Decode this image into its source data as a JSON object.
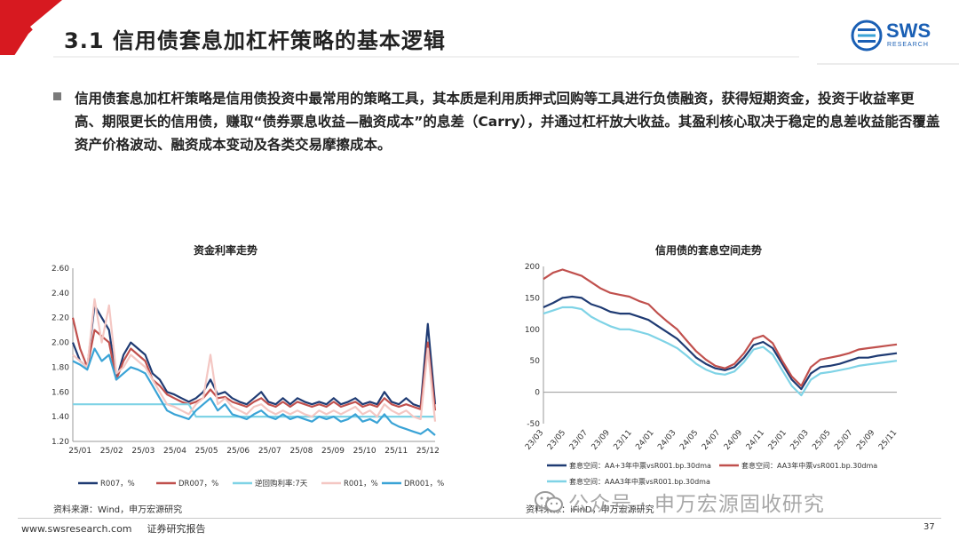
{
  "slide": {
    "title": "3.1 信用债套息加杠杆策略的基本逻辑",
    "logo_text": "SWS",
    "logo_sub": "RESEARCH",
    "bullet": "信用债套息加杠杆策略是信用债投资中最常用的策略工具，其本质是利用质押式回购等工具进行负债融资，获得短期资金，投资于收益率更高、期限更长的信用债，赚取“债券票息收益—融资成本”的息差（Carry），并通过杠杆放大收益。其盈利核心取决于稳定的息差收益能否覆盖资产价格波动、融资成本变动及各类交易摩擦成本。",
    "footer_url": "www.swsresearch.com",
    "footer_label": "证券研究报告",
    "page_number": "37",
    "watermark": "公众号 · 申万宏源固收研究",
    "colors": {
      "title_red": "#d71920",
      "brand_blue": "#1a5fb4"
    }
  },
  "chart_data": [
    {
      "type": "line",
      "title": "资金利率走势",
      "source": "资料来源：Wind，申万宏源研究",
      "x_ticks": [
        "25/01",
        "25/02",
        "25/03",
        "25/04",
        "25/05",
        "25/06",
        "25/07",
        "25/08",
        "25/09",
        "25/10",
        "25/11",
        "25/12"
      ],
      "ylim": [
        1.2,
        2.6
      ],
      "y_ticks": [
        "1.20",
        "1.40",
        "1.60",
        "1.80",
        "2.00",
        "2.20",
        "2.40",
        "2.60"
      ],
      "grid": false,
      "legend_position": "bottom",
      "series": [
        {
          "name": "R007，%",
          "color": "#1f3b73",
          "values": [
            2.0,
            1.85,
            1.8,
            2.3,
            2.2,
            2.1,
            1.7,
            1.9,
            2.0,
            1.95,
            1.9,
            1.75,
            1.7,
            1.6,
            1.58,
            1.55,
            1.52,
            1.55,
            1.6,
            1.7,
            1.58,
            1.6,
            1.55,
            1.52,
            1.5,
            1.55,
            1.6,
            1.52,
            1.5,
            1.55,
            1.5,
            1.55,
            1.52,
            1.5,
            1.52,
            1.5,
            1.55,
            1.5,
            1.52,
            1.55,
            1.5,
            1.52,
            1.5,
            1.6,
            1.52,
            1.5,
            1.55,
            1.5,
            1.48,
            2.15,
            1.5
          ]
        },
        {
          "name": "DR007，%",
          "color": "#c0504d",
          "values": [
            2.2,
            1.95,
            1.8,
            2.1,
            2.05,
            2.0,
            1.7,
            1.85,
            1.95,
            1.9,
            1.85,
            1.7,
            1.65,
            1.58,
            1.55,
            1.52,
            1.5,
            1.52,
            1.55,
            1.62,
            1.55,
            1.56,
            1.52,
            1.5,
            1.48,
            1.52,
            1.55,
            1.5,
            1.48,
            1.52,
            1.48,
            1.52,
            1.5,
            1.48,
            1.5,
            1.48,
            1.52,
            1.48,
            1.5,
            1.52,
            1.48,
            1.5,
            1.48,
            1.55,
            1.5,
            1.48,
            1.5,
            1.48,
            1.46,
            2.0,
            1.45
          ]
        },
        {
          "name": "逆回购利率:7天",
          "color": "#7fd3e6",
          "values": [
            1.5,
            1.5,
            1.5,
            1.5,
            1.5,
            1.5,
            1.5,
            1.5,
            1.5,
            1.5,
            1.5,
            1.5,
            1.5,
            1.5,
            1.5,
            1.5,
            1.5,
            1.4,
            1.4,
            1.4,
            1.4,
            1.4,
            1.4,
            1.4,
            1.4,
            1.4,
            1.4,
            1.4,
            1.4,
            1.4,
            1.4,
            1.4,
            1.4,
            1.4,
            1.4,
            1.4,
            1.4,
            1.4,
            1.4,
            1.4,
            1.4,
            1.4,
            1.4,
            1.4,
            1.4,
            1.4,
            1.4,
            1.4,
            1.4,
            1.4,
            1.4
          ]
        },
        {
          "name": "R001，%",
          "color": "#f4c7c3",
          "values": [
            1.9,
            1.85,
            1.8,
            2.35,
            2.0,
            2.3,
            1.75,
            1.8,
            1.9,
            1.85,
            1.8,
            1.7,
            1.6,
            1.5,
            1.48,
            1.45,
            1.42,
            1.5,
            1.55,
            1.9,
            1.5,
            1.55,
            1.48,
            1.45,
            1.42,
            1.48,
            1.5,
            1.45,
            1.42,
            1.45,
            1.42,
            1.45,
            1.42,
            1.4,
            1.45,
            1.42,
            1.45,
            1.42,
            1.45,
            1.48,
            1.42,
            1.45,
            1.4,
            1.5,
            1.45,
            1.42,
            1.45,
            1.4,
            1.38,
            1.95,
            1.36
          ]
        },
        {
          "name": "DR001，%",
          "color": "#3aa3d6",
          "values": [
            1.85,
            1.82,
            1.78,
            1.95,
            1.85,
            1.9,
            1.7,
            1.75,
            1.8,
            1.78,
            1.75,
            1.65,
            1.55,
            1.45,
            1.42,
            1.4,
            1.38,
            1.45,
            1.5,
            1.55,
            1.45,
            1.5,
            1.42,
            1.4,
            1.38,
            1.42,
            1.45,
            1.4,
            1.38,
            1.42,
            1.38,
            1.4,
            1.38,
            1.36,
            1.4,
            1.38,
            1.4,
            1.36,
            1.38,
            1.42,
            1.36,
            1.38,
            1.35,
            1.42,
            1.35,
            1.32,
            1.3,
            1.28,
            1.26,
            1.3,
            1.25
          ]
        }
      ]
    },
    {
      "type": "line",
      "title": "信用债的套息空间走势",
      "source": "资料来源：iFinD，申万宏源研究",
      "x_ticks": [
        "23/03",
        "23/05",
        "23/07",
        "23/09",
        "23/11",
        "24/01",
        "24/03",
        "24/05",
        "24/07",
        "24/09",
        "24/11",
        "25/01",
        "25/03",
        "25/05",
        "25/07",
        "25/09",
        "25/11"
      ],
      "ylim": [
        -50,
        200
      ],
      "y_ticks": [
        "-50",
        "0",
        "50",
        "100",
        "150",
        "200"
      ],
      "grid": false,
      "legend_position": "bottom",
      "series": [
        {
          "name": "套息空间：AA+3年中票vsR001.bp.30dma",
          "color": "#1f3b73",
          "values": [
            135,
            142,
            150,
            152,
            150,
            140,
            135,
            128,
            125,
            125,
            120,
            115,
            105,
            95,
            85,
            70,
            55,
            45,
            38,
            35,
            40,
            55,
            75,
            80,
            70,
            45,
            20,
            5,
            30,
            40,
            42,
            45,
            50,
            55,
            55,
            58,
            60,
            62
          ]
        },
        {
          "name": "套息空间：AA3年中票vsR001.bp.30dma",
          "color": "#c0504d",
          "values": [
            180,
            190,
            195,
            190,
            185,
            175,
            165,
            158,
            155,
            152,
            145,
            140,
            125,
            112,
            100,
            82,
            65,
            52,
            42,
            38,
            45,
            62,
            85,
            90,
            78,
            50,
            25,
            10,
            40,
            52,
            55,
            58,
            62,
            68,
            70,
            72,
            74,
            76
          ]
        },
        {
          "name": "套息空间：AAA3年中票vsR001.bp.30dma",
          "color": "#7fd3e6",
          "values": [
            125,
            130,
            135,
            135,
            132,
            120,
            112,
            105,
            100,
            100,
            96,
            92,
            85,
            78,
            70,
            58,
            45,
            36,
            30,
            28,
            33,
            48,
            68,
            72,
            60,
            35,
            10,
            -5,
            20,
            30,
            32,
            35,
            38,
            42,
            44,
            46,
            48,
            50
          ]
        }
      ]
    }
  ]
}
